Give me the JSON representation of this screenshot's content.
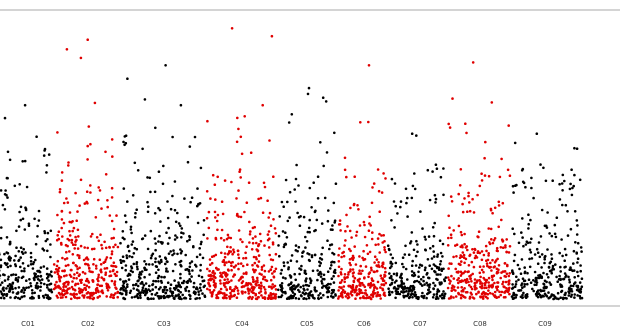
{
  "chart_data": {
    "type": "scatter",
    "title": "",
    "xlabel": "",
    "ylabel": "",
    "grid": false,
    "legend": "none",
    "categories": [
      "C01",
      "C02",
      "C03",
      "C04",
      "C05",
      "C06",
      "C07",
      "C08",
      "C09"
    ],
    "colors": [
      "#000000",
      "#e00000",
      "#000000",
      "#e00000",
      "#000000",
      "#e00000",
      "#000000",
      "#e00000",
      "#000000"
    ],
    "ylim": [
      0,
      10
    ],
    "series_peaks": [
      {
        "name": "C01",
        "max_value": 6.8
      },
      {
        "name": "C02",
        "max_value": 9.1
      },
      {
        "name": "C03",
        "max_value": 8.2
      },
      {
        "name": "C04",
        "max_value": 9.5
      },
      {
        "name": "C05",
        "max_value": 7.4
      },
      {
        "name": "C06",
        "max_value": 8.2
      },
      {
        "name": "C07",
        "max_value": 5.8
      },
      {
        "name": "C08",
        "max_value": 8.3
      },
      {
        "name": "C09",
        "max_value": 5.8
      }
    ]
  }
}
